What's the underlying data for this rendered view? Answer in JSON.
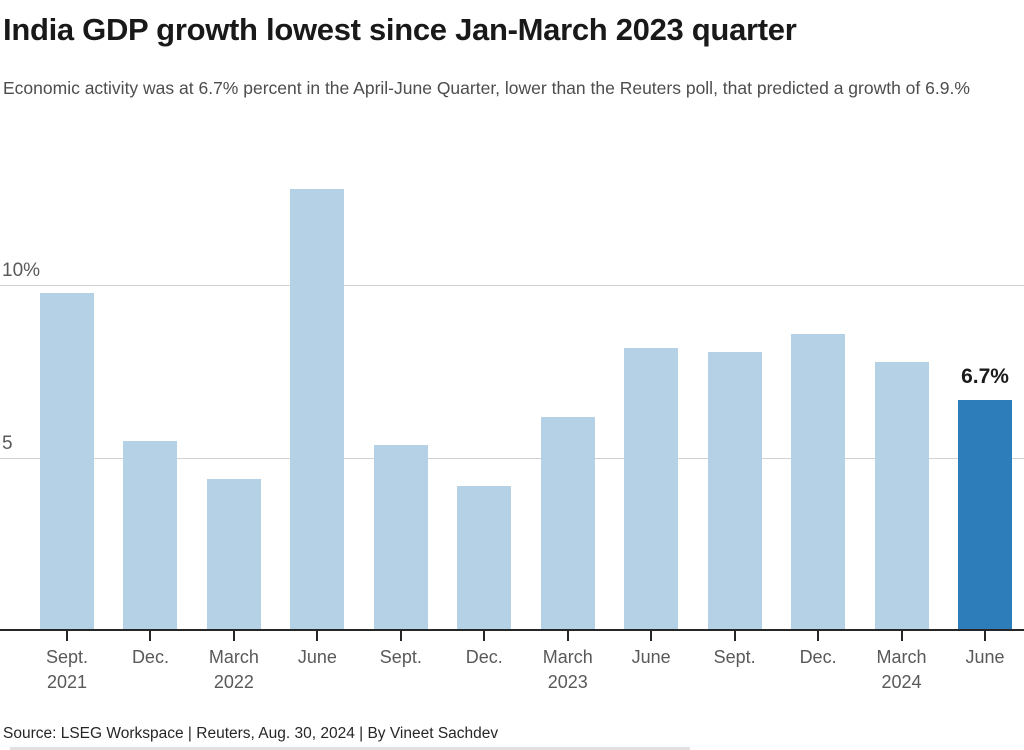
{
  "header": {
    "title": "India GDP growth lowest since Jan-March 2023 quarter",
    "subtitle": "Economic activity was at 6.7% percent in the April-June Quarter, lower than the Reuters poll, that predicted a growth of 6.9.%"
  },
  "chart_data": {
    "type": "bar",
    "title": "India GDP growth lowest since Jan-March 2023 quarter",
    "categories": [
      "Sept. 2021",
      "Dec.",
      "March 2022",
      "June",
      "Sept.",
      "Dec.",
      "March 2023",
      "June",
      "Sept.",
      "Dec.",
      "March 2024",
      "June"
    ],
    "values": [
      9.8,
      5.5,
      4.4,
      12.8,
      5.4,
      4.2,
      6.2,
      8.2,
      8.1,
      8.6,
      7.8,
      6.7
    ],
    "unit": "%",
    "xlabel": "",
    "ylabel": "",
    "ylim": [
      0,
      13.5
    ],
    "yticks": [
      {
        "value": 5,
        "label": "5"
      },
      {
        "value": 10,
        "label": "10%"
      }
    ],
    "grid": "horizontal",
    "legend": "none",
    "highlight": {
      "index": 11,
      "label": "6.7%"
    },
    "colors": {
      "bar": "#b5d1e6",
      "highlight": "#2d7dbb",
      "gridline": "#d2d2d2",
      "axis": "#262626"
    }
  },
  "footer": {
    "source": "Source: LSEG Workspace | Reuters, Aug. 30, 2024 | By Vineet Sachdev"
  }
}
